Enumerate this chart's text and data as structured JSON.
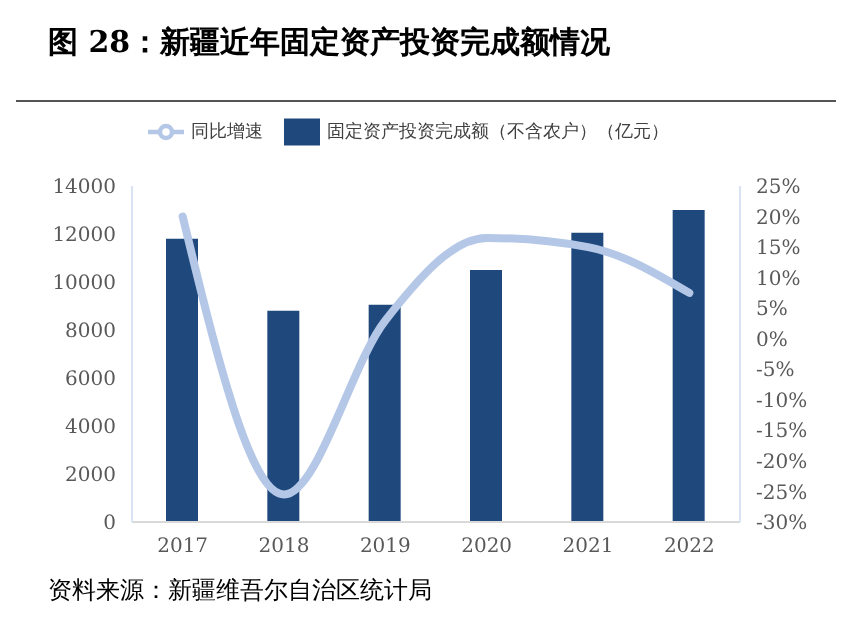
{
  "chart_data": {
    "type": "bar",
    "title": "图 28：新疆近年固定资产投资完成额情况",
    "categories": [
      "2017",
      "2018",
      "2019",
      "2020",
      "2021",
      "2022"
    ],
    "series": [
      {
        "name": "固定资产投资完成额（不含农户）（亿元）",
        "color": "#1f497d",
        "values": [
          11800,
          8800,
          9050,
          10500,
          12050,
          13000
        ]
      },
      {
        "name": "同比增速",
        "type": "line",
        "axis": "y2",
        "color": "#b4c7e7",
        "values": [
          20,
          -25.5,
          3,
          16.5,
          15,
          7.5
        ]
      }
    ],
    "ylim": [
      0,
      14000
    ],
    "yticks": [
      0,
      2000,
      4000,
      6000,
      8000,
      10000,
      12000,
      14000
    ],
    "y2lim": [
      -30,
      25
    ],
    "y2ticks": [
      {
        "value": -30,
        "label": "-30%"
      },
      {
        "value": -25,
        "label": "-25%"
      },
      {
        "value": -20,
        "label": "-20%"
      },
      {
        "value": -15,
        "label": "-15%"
      },
      {
        "value": -10,
        "label": "-10%"
      },
      {
        "value": -5,
        "label": "-5%"
      },
      {
        "value": 0,
        "label": "0%"
      },
      {
        "value": 5,
        "label": "5%"
      },
      {
        "value": 10,
        "label": "10%"
      },
      {
        "value": 15,
        "label": "15%"
      },
      {
        "value": 20,
        "label": "20%"
      },
      {
        "value": 25,
        "label": "25%"
      }
    ],
    "legend": "top",
    "grid": false,
    "marker": "none",
    "annotations": [
      "资料来源：新疆维吾尔自治区统计局"
    ]
  }
}
